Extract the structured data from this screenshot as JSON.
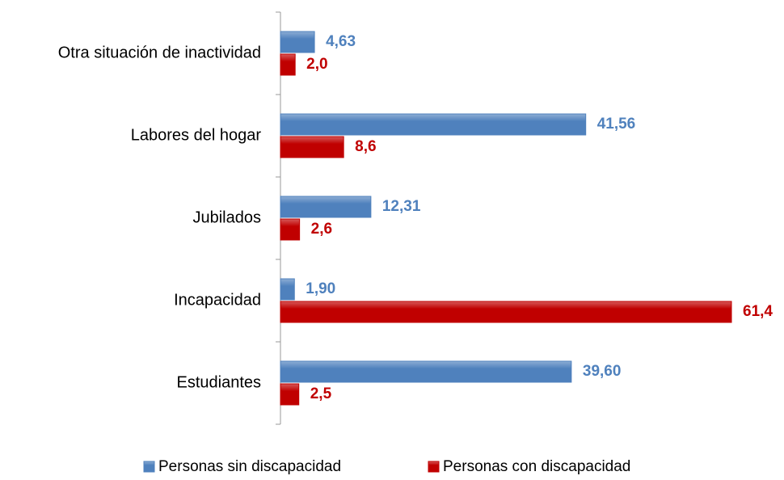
{
  "chart_data": {
    "type": "barh",
    "categories": [
      "Otra situación de inactividad",
      "Labores del hogar",
      "Jubilados",
      "Incapacidad",
      "Estudiantes"
    ],
    "series": [
      {
        "name": "Personas sin discapacidad",
        "color": "#4f81bd",
        "values": [
          4.63,
          41.56,
          12.31,
          1.9,
          39.6
        ],
        "value_labels": [
          "4,63",
          "41,56",
          "12,31",
          "1,90",
          "39,60"
        ]
      },
      {
        "name": "Personas con discapacidad",
        "color": "#c00000",
        "values": [
          2.0,
          8.6,
          2.6,
          61.4,
          2.5
        ],
        "value_labels": [
          "2,0",
          "8,6",
          "2,6",
          "61,4",
          "2,5"
        ]
      }
    ],
    "legend": "bottom"
  }
}
